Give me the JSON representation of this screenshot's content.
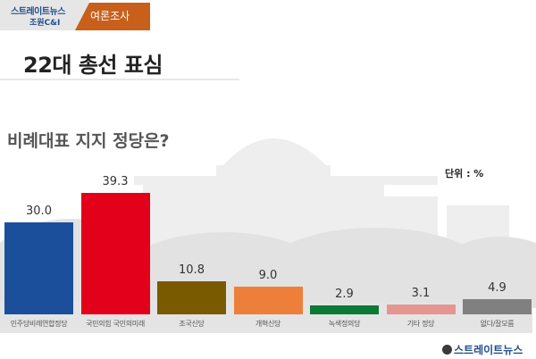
{
  "header": {
    "brand_line1": "스트레이트뉴스",
    "brand_line2": "조원C&I",
    "tab_label": "여론조사",
    "tab_color": "#c8601b"
  },
  "title": "22대 총선 표심",
  "question": "비례대표 지지 정당은?",
  "unit": "단위 : %",
  "footer_logo": "스트레이트뉴스",
  "chart_data": {
    "type": "bar",
    "title": "비례대표 지지 정당은?",
    "xlabel": "",
    "ylabel": "단위 : %",
    "categories": [
      "민주당비례연합정당",
      "국민의힘 국민의미래",
      "조국신당",
      "개혁신당",
      "녹색정의당",
      "기타 정당",
      "없다/잘모름"
    ],
    "values": [
      30.0,
      39.3,
      10.8,
      9.0,
      2.9,
      3.1,
      4.9
    ],
    "value_labels": [
      "30.0",
      "39.3",
      "10.8",
      "9.0",
      "2.9",
      "3.1",
      "4.9"
    ],
    "colors": [
      "#1b4f9c",
      "#e2001a",
      "#7a5a00",
      "#ee7f3a",
      "#0a7a35",
      "#e59690",
      "#808080"
    ],
    "grid": false,
    "legend": "none",
    "ylim": [
      0,
      45
    ]
  }
}
